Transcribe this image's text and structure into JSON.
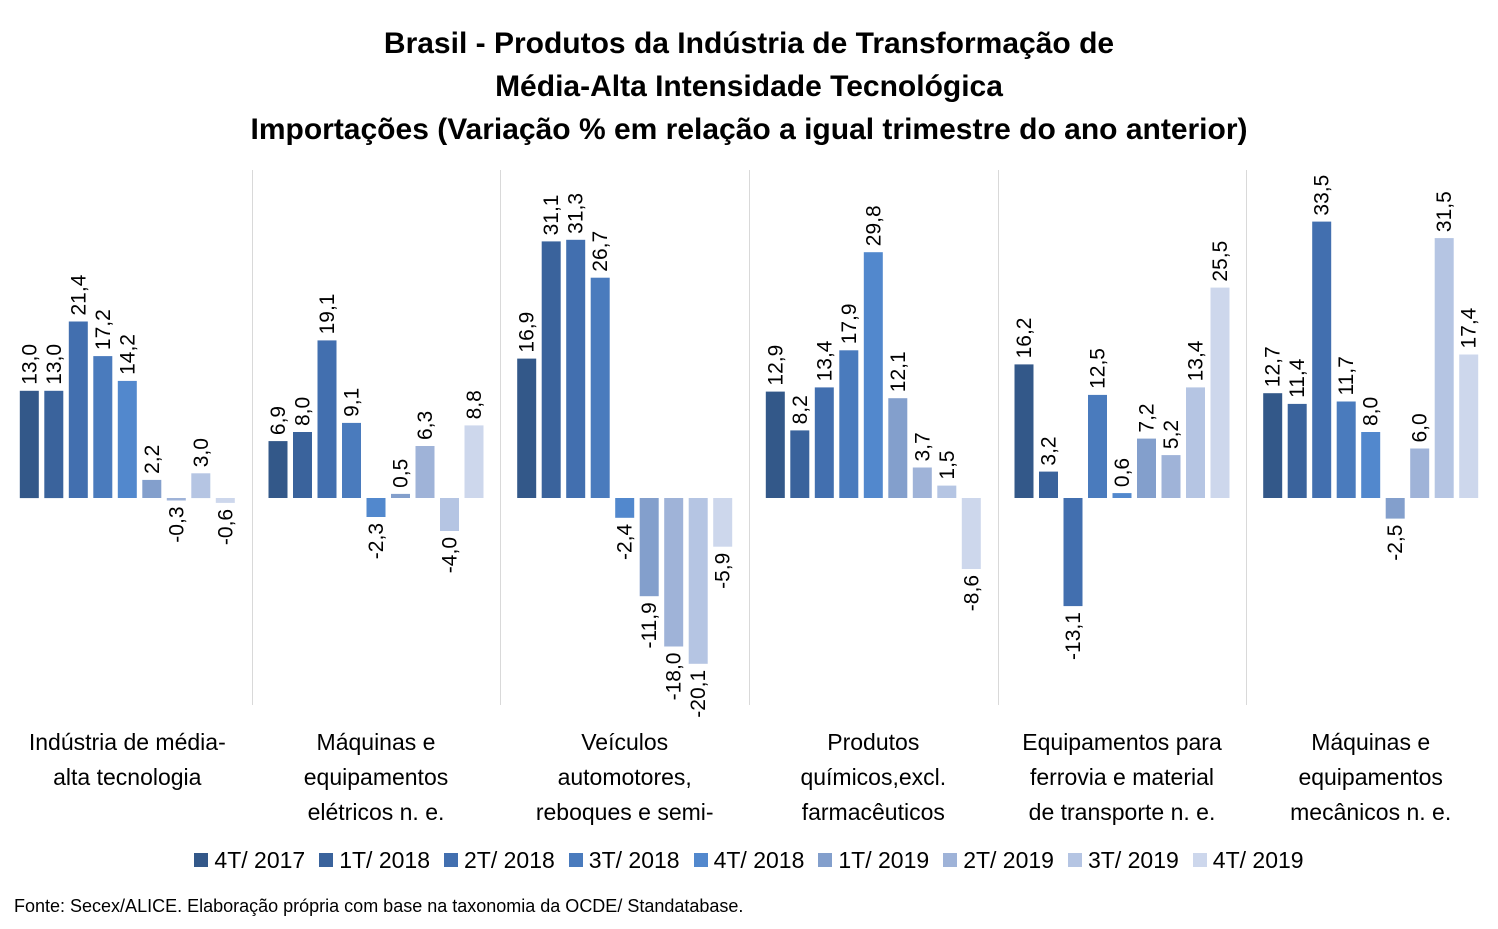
{
  "chart_data": {
    "type": "bar",
    "title_lines": [
      "Brasil - Produtos da Indústria de Transformação de",
      "Média-Alta Intensidade Tecnológica",
      "Importações (Variação % em relação a igual trimestre do ano anterior)"
    ],
    "categories": [
      [
        "Indústria de média-",
        "alta tecnologia"
      ],
      [
        "Máquinas e",
        "equipamentos",
        "elétricos n. e."
      ],
      [
        "Veículos",
        "automotores,",
        "reboques e semi-"
      ],
      [
        "Produtos",
        "químicos,excl.",
        "farmacêuticos"
      ],
      [
        "Equipamentos para",
        "ferrovia e material",
        "de transporte n. e."
      ],
      [
        "Máquinas e",
        "equipamentos",
        "mecânicos  n. e."
      ]
    ],
    "series": [
      {
        "name": "4T/ 2017",
        "color": "#335889",
        "values": [
          13.0,
          6.9,
          16.9,
          12.9,
          16.2,
          12.7
        ],
        "labels": [
          "13,0",
          "6,9",
          "16,9",
          "12,9",
          "16,2",
          "12,7"
        ]
      },
      {
        "name": "1T/ 2018",
        "color": "#3a639c",
        "values": [
          13.0,
          8.0,
          31.1,
          8.2,
          3.2,
          11.4
        ],
        "labels": [
          "13,0",
          "8,0",
          "31,1",
          "8,2",
          "3,2",
          "11,4"
        ]
      },
      {
        "name": "2T/ 2018",
        "color": "#426faf",
        "values": [
          21.4,
          19.1,
          31.3,
          13.4,
          -13.1,
          33.5
        ],
        "labels": [
          "21,4",
          "19,1",
          "31,3",
          "13,4",
          "-13,1",
          "33,5"
        ]
      },
      {
        "name": "3T/ 2018",
        "color": "#4a7bbd",
        "values": [
          17.2,
          9.1,
          26.7,
          17.9,
          12.5,
          11.7
        ],
        "labels": [
          "17,2",
          "9,1",
          "26,7",
          "17,9",
          "12,5",
          "11,7"
        ]
      },
      {
        "name": "4T/ 2018",
        "color": "#5288cd",
        "values": [
          14.2,
          -2.3,
          -2.4,
          29.8,
          0.6,
          8.0
        ],
        "labels": [
          "14,2",
          "-2,3",
          "-2,4",
          "29,8",
          "0,6",
          "8,0"
        ]
      },
      {
        "name": "1T/ 2019",
        "color": "#839fcc",
        "values": [
          2.2,
          0.5,
          -11.9,
          12.1,
          7.2,
          -2.5
        ],
        "labels": [
          "2,2",
          "0,5",
          "-11,9",
          "12,1",
          "7,2",
          "-2,5"
        ]
      },
      {
        "name": "2T/ 2019",
        "color": "#9fb3d8",
        "values": [
          -0.3,
          6.3,
          -18.0,
          3.7,
          5.2,
          6.0
        ],
        "labels": [
          "-0,3",
          "6,3",
          "-18,0",
          "3,7",
          "5,2",
          "6,0"
        ]
      },
      {
        "name": "3T/ 2019",
        "color": "#b5c5e3",
        "values": [
          3.0,
          -4.0,
          -20.1,
          1.5,
          13.4,
          31.5
        ],
        "labels": [
          "3,0",
          "-4,0",
          "-20,1",
          "1,5",
          "13,4",
          "31,5"
        ]
      },
      {
        "name": "4T/ 2019",
        "color": "#cdd7ec",
        "values": [
          -0.6,
          8.8,
          -5.9,
          -8.6,
          25.5,
          17.4
        ],
        "labels": [
          "-0,6",
          "8,8",
          "-5,9",
          "-8,6",
          "25,5",
          "17,4"
        ]
      }
    ],
    "ylim": [
      -23.0,
      37.0
    ],
    "legend_position": "bottom",
    "grid": false,
    "source": "Fonte: Secex/ALICE. Elaboração própria com base na taxonomia da OCDE/ Standatabase."
  }
}
